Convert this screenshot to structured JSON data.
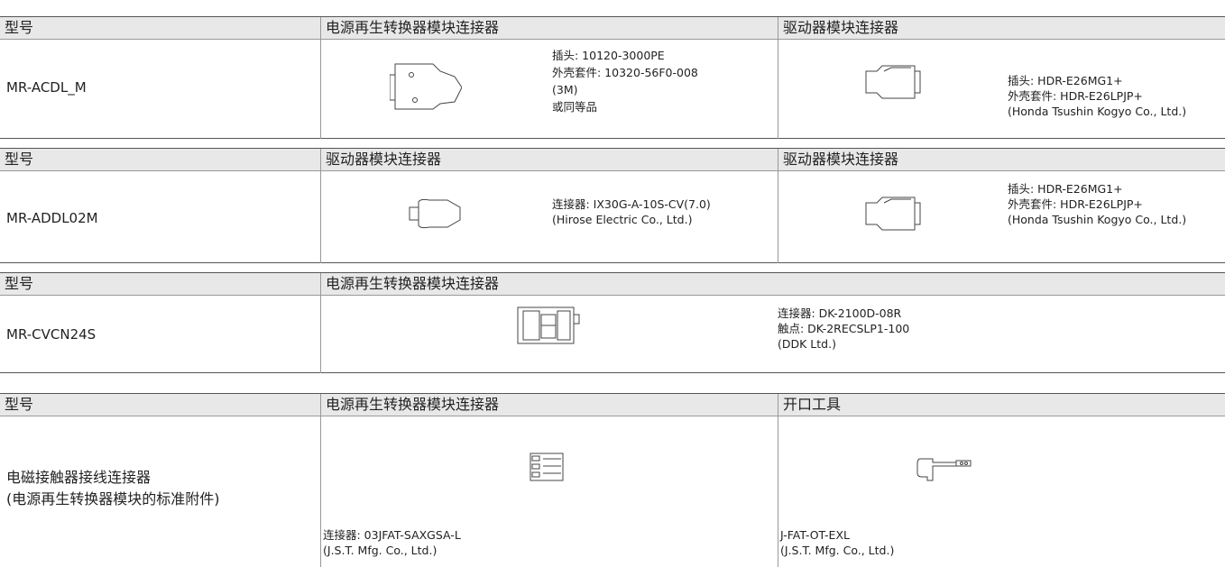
{
  "tables": [
    {
      "header": [
        "型号",
        "电源再生转换器模块连接器",
        "驱动器模块连接器"
      ],
      "model": [
        "MR-ACDL_M"
      ],
      "cells": [
        [
          "插头: 10120-3000PE",
          "外壳套件: 10320-56F0-008",
          "(3M)",
          "或同等品"
        ],
        [
          "插头: HDR-E26MG1+",
          "外壳套件: HDR-E26LPJP+",
          "(Honda Tsushin Kogyo Co., Ltd.)"
        ]
      ]
    },
    {
      "header": [
        "型号",
        "驱动器模块连接器",
        "驱动器模块连接器"
      ],
      "model": [
        "MR-ADDL02M"
      ],
      "cells": [
        [
          "连接器: IX30G-A-10S-CV(7.0)",
          "(Hirose Electric Co., Ltd.)"
        ],
        [
          "插头: HDR-E26MG1+",
          "外壳套件: HDR-E26LPJP+",
          "(Honda Tsushin Kogyo Co., Ltd.)"
        ]
      ]
    },
    {
      "header": [
        "型号",
        "电源再生转换器模块连接器"
      ],
      "model": [
        "MR-CVCN24S"
      ],
      "cells": [
        [
          "连接器: DK-2100D-08R",
          "触点: DK-2RECSLP1-100",
          "(DDK Ltd.)"
        ]
      ]
    },
    {
      "header": [
        "型号",
        "电源再生转换器模块连接器",
        "开口工具"
      ],
      "model": [
        "电磁接触器接线连接器",
        "(电源再生转换器模块的标准附件)"
      ],
      "cells": [
        [
          "连接器: 03JFAT-SAXGSA-L",
          "(J.S.T. Mfg. Co., Ltd.)"
        ],
        [
          "J-FAT-OT-EXL",
          "(J.S.T. Mfg. Co., Ltd.)"
        ]
      ]
    }
  ]
}
